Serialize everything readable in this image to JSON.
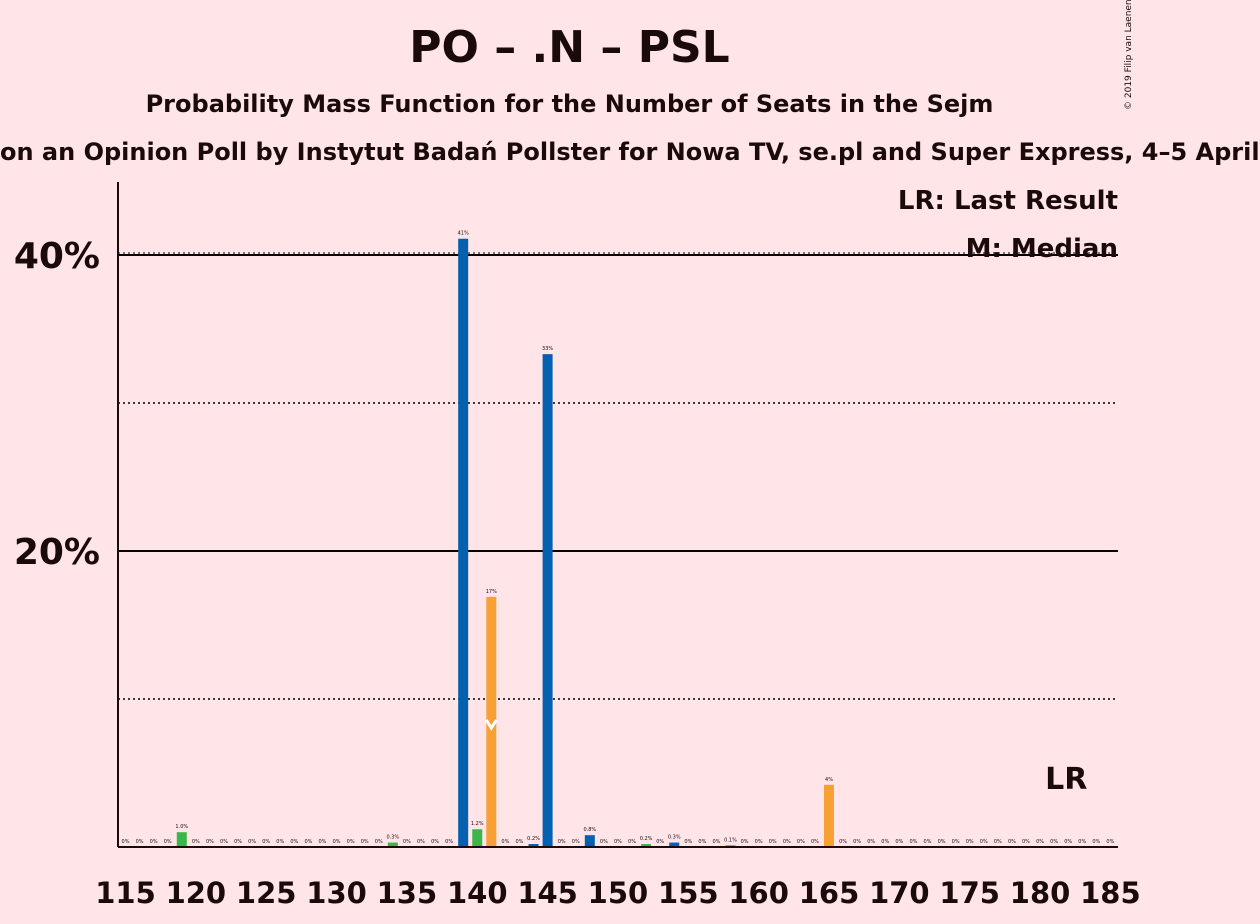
{
  "chart_data": {
    "type": "bar",
    "title": "PO – .N – PSL",
    "subtitle": "Probability Mass Function for the Number of Seats in the Sejm",
    "subsubtitle": "on an Opinion Poll by Instytut Badań Pollster for Nowa TV, se.pl and Super Express, 4–5 April",
    "copyright": "© 2019 Filip van Laenen",
    "legend": {
      "lr": "LR: Last Result",
      "median": "M: Median",
      "position": "top-right"
    },
    "lr_marker": {
      "seat": 183,
      "label": "LR"
    },
    "median_marker": {
      "seat": 141,
      "label": "M"
    },
    "ylim": [
      0,
      45
    ],
    "yticks": [
      {
        "value": 20,
        "label": "20%",
        "style": "solid"
      },
      {
        "value": 40,
        "label": "40%",
        "style": "solid"
      }
    ],
    "minor_gridlines": [
      10,
      30
    ],
    "xticks": [
      115,
      120,
      125,
      130,
      135,
      140,
      145,
      150,
      155,
      160,
      165,
      170,
      175,
      180,
      185
    ],
    "x_range": [
      114,
      185
    ],
    "colors": {
      "blue": "#0560b0",
      "green": "#3cb64a",
      "orange": "#f7a135",
      "grid": "#000000"
    },
    "bars": [
      {
        "seat": 115,
        "value": 0,
        "label": "0%",
        "color": "blue"
      },
      {
        "seat": 116,
        "value": 0,
        "label": "0%",
        "color": "blue"
      },
      {
        "seat": 117,
        "value": 0,
        "label": "0%",
        "color": "blue"
      },
      {
        "seat": 118,
        "value": 0,
        "label": "0%",
        "color": "blue"
      },
      {
        "seat": 119,
        "value": 1.0,
        "label": "1.0%",
        "color": "green"
      },
      {
        "seat": 120,
        "value": 0,
        "label": "0%",
        "color": "blue"
      },
      {
        "seat": 121,
        "value": 0,
        "label": "0%",
        "color": "blue"
      },
      {
        "seat": 122,
        "value": 0,
        "label": "0%",
        "color": "blue"
      },
      {
        "seat": 123,
        "value": 0,
        "label": "0%",
        "color": "blue"
      },
      {
        "seat": 124,
        "value": 0,
        "label": "0%",
        "color": "blue"
      },
      {
        "seat": 125,
        "value": 0,
        "label": "0%",
        "color": "blue"
      },
      {
        "seat": 126,
        "value": 0,
        "label": "0%",
        "color": "blue"
      },
      {
        "seat": 127,
        "value": 0,
        "label": "0%",
        "color": "blue"
      },
      {
        "seat": 128,
        "value": 0,
        "label": "0%",
        "color": "blue"
      },
      {
        "seat": 129,
        "value": 0,
        "label": "0%",
        "color": "blue"
      },
      {
        "seat": 130,
        "value": 0,
        "label": "0%",
        "color": "blue"
      },
      {
        "seat": 131,
        "value": 0,
        "label": "0%",
        "color": "blue"
      },
      {
        "seat": 132,
        "value": 0,
        "label": "0%",
        "color": "blue"
      },
      {
        "seat": 133,
        "value": 0,
        "label": "0%",
        "color": "blue"
      },
      {
        "seat": 134,
        "value": 0.3,
        "label": "0.3%",
        "color": "green"
      },
      {
        "seat": 135,
        "value": 0,
        "label": "0%",
        "color": "blue"
      },
      {
        "seat": 136,
        "value": 0,
        "label": "0%",
        "color": "blue"
      },
      {
        "seat": 137,
        "value": 0,
        "label": "0%",
        "color": "blue"
      },
      {
        "seat": 138,
        "value": 0,
        "label": "0%",
        "color": "blue"
      },
      {
        "seat": 139,
        "value": 41.1,
        "label": "41%",
        "color": "blue"
      },
      {
        "seat": 140,
        "value": 1.2,
        "label": "1.2%",
        "color": "green"
      },
      {
        "seat": 141,
        "value": 16.9,
        "label": "17%",
        "color": "orange"
      },
      {
        "seat": 142,
        "value": 0,
        "label": "0%",
        "color": "blue"
      },
      {
        "seat": 143,
        "value": 0,
        "label": "0%",
        "color": "blue"
      },
      {
        "seat": 144,
        "value": 0.2,
        "label": "0.2%",
        "color": "blue"
      },
      {
        "seat": 145,
        "value": 33.3,
        "label": "33%",
        "color": "blue"
      },
      {
        "seat": 146,
        "value": 0,
        "label": "0%",
        "color": "blue"
      },
      {
        "seat": 147,
        "value": 0,
        "label": "0%",
        "color": "blue"
      },
      {
        "seat": 148,
        "value": 0.8,
        "label": "0.8%",
        "color": "blue"
      },
      {
        "seat": 149,
        "value": 0,
        "label": "0%",
        "color": "blue"
      },
      {
        "seat": 150,
        "value": 0,
        "label": "0%",
        "color": "blue"
      },
      {
        "seat": 151,
        "value": 0,
        "label": "0%",
        "color": "blue"
      },
      {
        "seat": 152,
        "value": 0.2,
        "label": "0.2%",
        "color": "green"
      },
      {
        "seat": 153,
        "value": 0,
        "label": "0%",
        "color": "blue"
      },
      {
        "seat": 154,
        "value": 0.3,
        "label": "0.3%",
        "color": "blue"
      },
      {
        "seat": 155,
        "value": 0,
        "label": "0%",
        "color": "blue"
      },
      {
        "seat": 156,
        "value": 0,
        "label": "0%",
        "color": "blue"
      },
      {
        "seat": 157,
        "value": 0,
        "label": "0%",
        "color": "blue"
      },
      {
        "seat": 158,
        "value": 0.1,
        "label": "0.1%",
        "color": "blue"
      },
      {
        "seat": 159,
        "value": 0,
        "label": "0%",
        "color": "blue"
      },
      {
        "seat": 160,
        "value": 0,
        "label": "0%",
        "color": "blue"
      },
      {
        "seat": 161,
        "value": 0,
        "label": "0%",
        "color": "blue"
      },
      {
        "seat": 162,
        "value": 0,
        "label": "0%",
        "color": "blue"
      },
      {
        "seat": 163,
        "value": 0,
        "label": "0%",
        "color": "blue"
      },
      {
        "seat": 164,
        "value": 0,
        "label": "0%",
        "color": "blue"
      },
      {
        "seat": 165,
        "value": 4.2,
        "label": "4%",
        "color": "orange"
      },
      {
        "seat": 166,
        "value": 0,
        "label": "0%",
        "color": "blue"
      },
      {
        "seat": 167,
        "value": 0,
        "label": "0%",
        "color": "blue"
      },
      {
        "seat": 168,
        "value": 0,
        "label": "0%",
        "color": "blue"
      },
      {
        "seat": 169,
        "value": 0,
        "label": "0%",
        "color": "blue"
      },
      {
        "seat": 170,
        "value": 0,
        "label": "0%",
        "color": "blue"
      },
      {
        "seat": 171,
        "value": 0,
        "label": "0%",
        "color": "blue"
      },
      {
        "seat": 172,
        "value": 0,
        "label": "0%",
        "color": "blue"
      },
      {
        "seat": 173,
        "value": 0,
        "label": "0%",
        "color": "blue"
      },
      {
        "seat": 174,
        "value": 0,
        "label": "0%",
        "color": "blue"
      },
      {
        "seat": 175,
        "value": 0,
        "label": "0%",
        "color": "blue"
      },
      {
        "seat": 176,
        "value": 0,
        "label": "0%",
        "color": "blue"
      },
      {
        "seat": 177,
        "value": 0,
        "label": "0%",
        "color": "blue"
      },
      {
        "seat": 178,
        "value": 0,
        "label": "0%",
        "color": "blue"
      },
      {
        "seat": 179,
        "value": 0,
        "label": "0%",
        "color": "blue"
      },
      {
        "seat": 180,
        "value": 0,
        "label": "0%",
        "color": "blue"
      },
      {
        "seat": 181,
        "value": 0,
        "label": "0%",
        "color": "blue"
      },
      {
        "seat": 182,
        "value": 0,
        "label": "0%",
        "color": "blue"
      },
      {
        "seat": 183,
        "value": 0,
        "label": "0%",
        "color": "blue"
      },
      {
        "seat": 184,
        "value": 0,
        "label": "0%",
        "color": "blue"
      },
      {
        "seat": 185,
        "value": 0,
        "label": "0%",
        "color": "blue"
      }
    ]
  }
}
